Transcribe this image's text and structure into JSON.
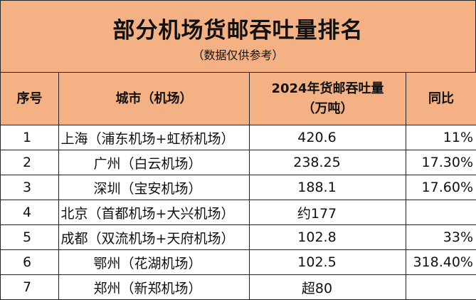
{
  "title": "部分机场货邮吞吐量排名",
  "subtitle": "（数据仅供参考）",
  "table": {
    "headers": {
      "rank": "序号",
      "city": "城市（机场）",
      "volume_line1": "2024年货邮吞吐量",
      "volume_line2": "（万吨）",
      "yoy": "同比"
    },
    "rows": [
      {
        "rank": "1",
        "city": "上海（浦东机场+虹桥机场）",
        "volume": "420.6",
        "yoy": "11%"
      },
      {
        "rank": "2",
        "city": "广州（白云机场）",
        "volume": "238.25",
        "yoy": "17.30%"
      },
      {
        "rank": "3",
        "city": "深圳（宝安机场）",
        "volume": "188.1",
        "yoy": "17.60%"
      },
      {
        "rank": "4",
        "city": "北京（首都机场+大兴机场）",
        "volume": "约177",
        "yoy": ""
      },
      {
        "rank": "5",
        "city": "成都（双流机场+天府机场）",
        "volume": "102.8",
        "yoy": "33%"
      },
      {
        "rank": "6",
        "city": "鄂州（花湖机场）",
        "volume": "102.5",
        "yoy": "318.40%"
      },
      {
        "rank": "7",
        "city": "郑州（新郑机场）",
        "volume": "超80",
        "yoy": ""
      }
    ]
  }
}
